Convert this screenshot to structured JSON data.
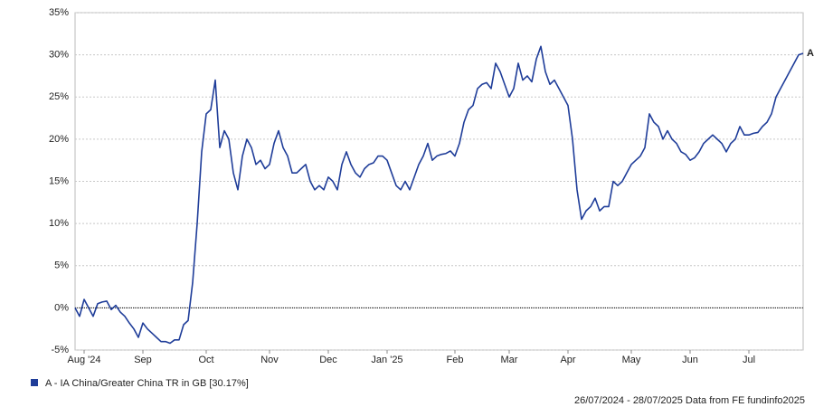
{
  "chart_data": {
    "type": "line",
    "categories": [
      null,
      null,
      "Aug '24",
      null,
      null,
      null,
      null,
      null,
      null,
      null,
      null,
      null,
      null,
      null,
      null,
      "Sep",
      null,
      null,
      null,
      null,
      null,
      null,
      null,
      null,
      null,
      null,
      null,
      null,
      null,
      "Oct",
      null,
      null,
      null,
      null,
      null,
      null,
      null,
      null,
      null,
      null,
      null,
      null,
      null,
      "Nov",
      null,
      null,
      null,
      null,
      null,
      null,
      null,
      null,
      null,
      null,
      null,
      null,
      "Dec",
      null,
      null,
      null,
      null,
      null,
      null,
      null,
      null,
      null,
      null,
      null,
      null,
      "Jan '25",
      null,
      null,
      null,
      null,
      null,
      null,
      null,
      null,
      null,
      null,
      null,
      null,
      null,
      null,
      "Feb",
      null,
      null,
      null,
      null,
      null,
      null,
      null,
      null,
      null,
      null,
      null,
      "Mar",
      null,
      null,
      null,
      null,
      null,
      null,
      null,
      null,
      null,
      null,
      null,
      null,
      "Apr",
      null,
      null,
      null,
      null,
      null,
      null,
      null,
      null,
      null,
      null,
      null,
      null,
      null,
      "May",
      null,
      null,
      null,
      null,
      null,
      null,
      null,
      null,
      null,
      null,
      null,
      null,
      "Jun",
      null,
      null,
      null,
      null,
      null,
      null,
      null,
      null,
      null,
      null,
      null,
      null,
      "Jul",
      null,
      null,
      null,
      null,
      null,
      null,
      null,
      null,
      null,
      null,
      null,
      null
    ],
    "series": [
      {
        "name": "A - IA China/Greater China TR in GB [30.17%]",
        "color": "#1f3d99",
        "values": [
          0,
          -1,
          1,
          0,
          -1,
          0.5,
          0.7,
          0.8,
          -0.2,
          0.3,
          -0.5,
          -1,
          -1.8,
          -2.5,
          -3.5,
          -1.8,
          -2.5,
          -3,
          -3.5,
          -4,
          -4,
          -4.2,
          -3.8,
          -3.8,
          -2,
          -1.5,
          3,
          10,
          18.5,
          23,
          23.5,
          27,
          19,
          21,
          20,
          16,
          14,
          18,
          20,
          19,
          17,
          17.5,
          16.5,
          17,
          19.5,
          21,
          19,
          18,
          16,
          16,
          16.5,
          17,
          15,
          14,
          14.5,
          14,
          15.5,
          15,
          14,
          17,
          18.5,
          17,
          16,
          15.5,
          16.5,
          17,
          17.2,
          18,
          18,
          17.5,
          16,
          14.5,
          14,
          15,
          14,
          15.5,
          17,
          18,
          19.5,
          17.5,
          18,
          18.2,
          18.3,
          18.6,
          18,
          19.5,
          22,
          23.5,
          24,
          26,
          26.5,
          26.7,
          26,
          29,
          28,
          26.5,
          25,
          26,
          29,
          27,
          27.5,
          26.8,
          29.5,
          31,
          28,
          26.5,
          27,
          26,
          25,
          24,
          20,
          14,
          10.5,
          11.5,
          12,
          13,
          11.5,
          12,
          12,
          15,
          14.5,
          15,
          16,
          17,
          17.5,
          18,
          19,
          23,
          22,
          21.5,
          20,
          21,
          20,
          19.5,
          18.5,
          18.2,
          17.5,
          17.8,
          18.5,
          19.5,
          20,
          20.5,
          20,
          19.5,
          18.5,
          19.5,
          20,
          21.5,
          20.5,
          20.5,
          20.7,
          20.8,
          21.5,
          22,
          23,
          25,
          26,
          27,
          28,
          29,
          30,
          30.17
        ]
      }
    ],
    "end_label": "A",
    "ylim": [
      -5,
      35
    ],
    "yticks": [
      {
        "value": -5,
        "label": "-5%"
      },
      {
        "value": 0,
        "label": "0%"
      },
      {
        "value": 5,
        "label": "5%"
      },
      {
        "value": 10,
        "label": "10%"
      },
      {
        "value": 15,
        "label": "15%"
      },
      {
        "value": 20,
        "label": "20%"
      },
      {
        "value": 25,
        "label": "25%"
      },
      {
        "value": 30,
        "label": "30%"
      },
      {
        "value": 35,
        "label": "35%"
      }
    ],
    "grid": true,
    "zero_line": true,
    "footer": "26/07/2024 - 28/07/2025 Data from FE fundinfo2025"
  }
}
